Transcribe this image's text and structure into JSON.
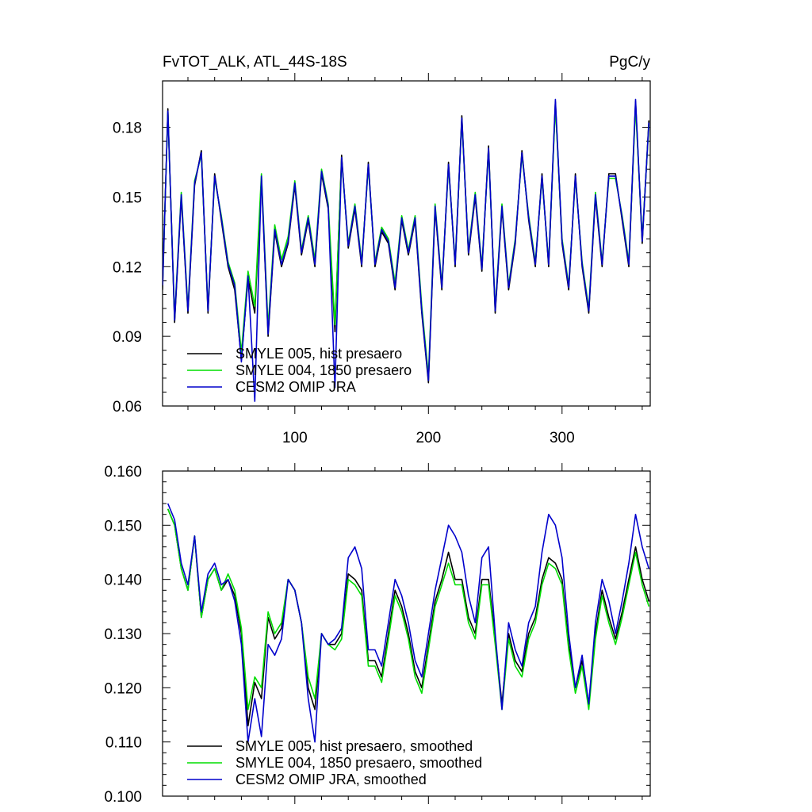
{
  "chart_data": [
    {
      "type": "line",
      "title": "FvTOT_ALK, ATL_44S-18S",
      "units": "PgC/y",
      "xlim": [
        1,
        366
      ],
      "ylim": [
        0.06,
        0.2
      ],
      "x_ticks": [
        100,
        200,
        300
      ],
      "y_ticks": [
        0.06,
        0.09,
        0.12,
        0.15,
        0.18
      ],
      "y_tick_labels": [
        "0.06",
        "0.09",
        "0.12",
        "0.15",
        "0.18"
      ],
      "legend_position": "bottom-left",
      "series": [
        {
          "name": "SMYLE 005, hist presaero",
          "color": "#000000",
          "x": [
            1,
            5,
            10,
            15,
            20,
            25,
            30,
            35,
            40,
            45,
            50,
            55,
            60,
            65,
            70,
            75,
            80,
            85,
            90,
            95,
            100,
            105,
            110,
            115,
            120,
            125,
            130,
            135,
            140,
            145,
            150,
            155,
            160,
            165,
            170,
            175,
            180,
            185,
            190,
            195,
            200,
            205,
            210,
            215,
            220,
            225,
            230,
            235,
            240,
            245,
            250,
            255,
            260,
            265,
            270,
            275,
            280,
            285,
            290,
            295,
            300,
            305,
            310,
            315,
            320,
            325,
            330,
            335,
            340,
            345,
            350,
            355,
            360,
            365
          ],
          "values": [
            0.11,
            0.188,
            0.096,
            0.15,
            0.1,
            0.155,
            0.17,
            0.1,
            0.16,
            0.14,
            0.12,
            0.11,
            0.08,
            0.115,
            0.1,
            0.158,
            0.09,
            0.135,
            0.12,
            0.13,
            0.155,
            0.125,
            0.14,
            0.12,
            0.16,
            0.145,
            0.092,
            0.168,
            0.128,
            0.145,
            0.12,
            0.165,
            0.12,
            0.135,
            0.13,
            0.11,
            0.14,
            0.125,
            0.14,
            0.1,
            0.07,
            0.145,
            0.11,
            0.165,
            0.12,
            0.185,
            0.125,
            0.15,
            0.118,
            0.172,
            0.1,
            0.145,
            0.11,
            0.13,
            0.17,
            0.14,
            0.12,
            0.16,
            0.12,
            0.191,
            0.13,
            0.11,
            0.16,
            0.12,
            0.1,
            0.15,
            0.12,
            0.16,
            0.16,
            0.14,
            0.12,
            0.191,
            0.13,
            0.183
          ]
        },
        {
          "name": "SMYLE 004, 1850 presaero",
          "color": "#00dd00",
          "x": [
            1,
            5,
            10,
            15,
            20,
            25,
            30,
            35,
            40,
            45,
            50,
            55,
            60,
            65,
            70,
            75,
            80,
            85,
            90,
            95,
            100,
            105,
            110,
            115,
            120,
            125,
            130,
            135,
            140,
            145,
            150,
            155,
            160,
            165,
            170,
            175,
            180,
            185,
            190,
            195,
            200,
            205,
            210,
            215,
            220,
            225,
            230,
            235,
            240,
            245,
            250,
            255,
            260,
            265,
            270,
            275,
            280,
            285,
            290,
            295,
            300,
            305,
            310,
            315,
            320,
            325,
            330,
            335,
            340,
            345,
            350,
            355,
            360,
            365
          ],
          "values": [
            0.113,
            0.186,
            0.098,
            0.152,
            0.102,
            0.157,
            0.168,
            0.102,
            0.158,
            0.142,
            0.122,
            0.113,
            0.083,
            0.118,
            0.103,
            0.16,
            0.094,
            0.138,
            0.123,
            0.133,
            0.157,
            0.127,
            0.142,
            0.123,
            0.162,
            0.147,
            0.095,
            0.166,
            0.13,
            0.147,
            0.122,
            0.163,
            0.122,
            0.137,
            0.132,
            0.113,
            0.142,
            0.127,
            0.142,
            0.103,
            0.073,
            0.147,
            0.112,
            0.163,
            0.122,
            0.183,
            0.127,
            0.152,
            0.12,
            0.17,
            0.102,
            0.147,
            0.112,
            0.132,
            0.168,
            0.142,
            0.122,
            0.158,
            0.122,
            0.189,
            0.132,
            0.112,
            0.158,
            0.122,
            0.102,
            0.152,
            0.122,
            0.158,
            0.158,
            0.142,
            0.122,
            0.189,
            0.132,
            0.181
          ]
        },
        {
          "name": "CESM2 OMIP JRA",
          "color": "#0000cc",
          "x": [
            1,
            5,
            10,
            15,
            20,
            25,
            30,
            35,
            40,
            45,
            50,
            55,
            60,
            65,
            70,
            75,
            80,
            85,
            90,
            95,
            100,
            105,
            110,
            115,
            120,
            125,
            130,
            135,
            140,
            145,
            150,
            155,
            160,
            165,
            170,
            175,
            180,
            185,
            190,
            195,
            200,
            205,
            210,
            215,
            220,
            225,
            230,
            235,
            240,
            245,
            250,
            255,
            260,
            265,
            270,
            275,
            280,
            285,
            290,
            295,
            300,
            305,
            310,
            315,
            320,
            325,
            330,
            335,
            340,
            345,
            350,
            355,
            360,
            365
          ],
          "values": [
            0.112,
            0.187,
            0.097,
            0.151,
            0.101,
            0.156,
            0.169,
            0.101,
            0.159,
            0.141,
            0.121,
            0.112,
            0.079,
            0.116,
            0.062,
            0.159,
            0.091,
            0.136,
            0.121,
            0.131,
            0.156,
            0.126,
            0.141,
            0.121,
            0.161,
            0.146,
            0.068,
            0.167,
            0.129,
            0.146,
            0.121,
            0.164,
            0.121,
            0.136,
            0.131,
            0.111,
            0.141,
            0.126,
            0.141,
            0.101,
            0.071,
            0.146,
            0.111,
            0.164,
            0.121,
            0.184,
            0.126,
            0.151,
            0.119,
            0.171,
            0.101,
            0.146,
            0.111,
            0.131,
            0.169,
            0.141,
            0.121,
            0.159,
            0.121,
            0.192,
            0.131,
            0.111,
            0.159,
            0.121,
            0.101,
            0.151,
            0.121,
            0.159,
            0.159,
            0.141,
            0.121,
            0.192,
            0.131,
            0.182
          ]
        }
      ]
    },
    {
      "type": "line",
      "xlim": [
        1,
        366
      ],
      "ylim": [
        0.1,
        0.16
      ],
      "x_ticks": [
        100,
        200,
        300
      ],
      "y_ticks": [
        0.1,
        0.11,
        0.12,
        0.13,
        0.14,
        0.15,
        0.16
      ],
      "y_tick_labels": [
        "0.100",
        "0.110",
        "0.120",
        "0.130",
        "0.140",
        "0.150",
        "0.160"
      ],
      "legend_position": "bottom-left",
      "series": [
        {
          "name": "SMYLE 005, hist presaero, smoothed",
          "color": "#000000",
          "x": [
            5,
            10,
            15,
            20,
            25,
            30,
            35,
            40,
            45,
            50,
            55,
            60,
            65,
            70,
            75,
            80,
            85,
            90,
            95,
            100,
            105,
            110,
            115,
            120,
            125,
            130,
            135,
            140,
            145,
            150,
            155,
            160,
            165,
            170,
            175,
            180,
            185,
            190,
            195,
            200,
            205,
            210,
            215,
            220,
            225,
            230,
            235,
            240,
            245,
            250,
            255,
            260,
            265,
            270,
            275,
            280,
            285,
            290,
            295,
            300,
            305,
            310,
            315,
            320,
            325,
            330,
            335,
            340,
            345,
            350,
            355,
            360,
            365
          ],
          "values": [
            0.153,
            0.15,
            0.142,
            0.138,
            0.148,
            0.133,
            0.14,
            0.142,
            0.138,
            0.14,
            0.137,
            0.13,
            0.113,
            0.121,
            0.118,
            0.133,
            0.129,
            0.131,
            0.14,
            0.138,
            0.132,
            0.12,
            0.116,
            0.13,
            0.128,
            0.128,
            0.13,
            0.141,
            0.14,
            0.138,
            0.125,
            0.125,
            0.122,
            0.13,
            0.138,
            0.135,
            0.13,
            0.123,
            0.12,
            0.128,
            0.136,
            0.14,
            0.145,
            0.14,
            0.14,
            0.133,
            0.13,
            0.14,
            0.14,
            0.129,
            0.117,
            0.13,
            0.125,
            0.123,
            0.13,
            0.133,
            0.14,
            0.144,
            0.143,
            0.14,
            0.128,
            0.12,
            0.125,
            0.117,
            0.13,
            0.138,
            0.133,
            0.129,
            0.134,
            0.14,
            0.146,
            0.14,
            0.136
          ]
        },
        {
          "name": "SMYLE 004, 1850 presaero, smoothed",
          "color": "#00dd00",
          "x": [
            5,
            10,
            15,
            20,
            25,
            30,
            35,
            40,
            45,
            50,
            55,
            60,
            65,
            70,
            75,
            80,
            85,
            90,
            95,
            100,
            105,
            110,
            115,
            120,
            125,
            130,
            135,
            140,
            145,
            150,
            155,
            160,
            165,
            170,
            175,
            180,
            185,
            190,
            195,
            200,
            205,
            210,
            215,
            220,
            225,
            230,
            235,
            240,
            245,
            250,
            255,
            260,
            265,
            270,
            275,
            280,
            285,
            290,
            295,
            300,
            305,
            310,
            315,
            320,
            325,
            330,
            335,
            340,
            345,
            350,
            355,
            360,
            365
          ],
          "values": [
            0.153,
            0.15,
            0.142,
            0.138,
            0.148,
            0.133,
            0.14,
            0.142,
            0.138,
            0.141,
            0.138,
            0.131,
            0.116,
            0.122,
            0.12,
            0.134,
            0.13,
            0.132,
            0.14,
            0.138,
            0.132,
            0.122,
            0.118,
            0.13,
            0.128,
            0.127,
            0.129,
            0.14,
            0.139,
            0.137,
            0.124,
            0.124,
            0.121,
            0.129,
            0.137,
            0.134,
            0.129,
            0.122,
            0.119,
            0.127,
            0.135,
            0.139,
            0.143,
            0.139,
            0.139,
            0.132,
            0.129,
            0.139,
            0.139,
            0.128,
            0.116,
            0.129,
            0.124,
            0.122,
            0.129,
            0.132,
            0.139,
            0.143,
            0.142,
            0.139,
            0.127,
            0.119,
            0.124,
            0.116,
            0.129,
            0.137,
            0.132,
            0.128,
            0.133,
            0.139,
            0.145,
            0.139,
            0.135
          ]
        },
        {
          "name": "CESM2 OMIP JRA, smoothed",
          "color": "#0000cc",
          "x": [
            5,
            10,
            15,
            20,
            25,
            30,
            35,
            40,
            45,
            50,
            55,
            60,
            65,
            70,
            75,
            80,
            85,
            90,
            95,
            100,
            105,
            110,
            115,
            120,
            125,
            130,
            135,
            140,
            145,
            150,
            155,
            160,
            165,
            170,
            175,
            180,
            185,
            190,
            195,
            200,
            205,
            210,
            215,
            220,
            225,
            230,
            235,
            240,
            245,
            250,
            255,
            260,
            265,
            270,
            275,
            280,
            285,
            290,
            295,
            300,
            305,
            310,
            315,
            320,
            325,
            330,
            335,
            340,
            345,
            350,
            355,
            360,
            365
          ],
          "values": [
            0.154,
            0.151,
            0.143,
            0.139,
            0.148,
            0.134,
            0.141,
            0.143,
            0.139,
            0.14,
            0.136,
            0.128,
            0.11,
            0.118,
            0.111,
            0.128,
            0.126,
            0.129,
            0.14,
            0.138,
            0.132,
            0.118,
            0.11,
            0.13,
            0.128,
            0.129,
            0.131,
            0.144,
            0.146,
            0.142,
            0.127,
            0.127,
            0.124,
            0.132,
            0.14,
            0.137,
            0.132,
            0.125,
            0.122,
            0.13,
            0.138,
            0.144,
            0.15,
            0.148,
            0.145,
            0.137,
            0.132,
            0.144,
            0.146,
            0.13,
            0.116,
            0.132,
            0.127,
            0.124,
            0.132,
            0.135,
            0.145,
            0.152,
            0.15,
            0.144,
            0.13,
            0.12,
            0.126,
            0.117,
            0.132,
            0.14,
            0.136,
            0.13,
            0.136,
            0.143,
            0.152,
            0.146,
            0.142
          ]
        }
      ]
    }
  ]
}
